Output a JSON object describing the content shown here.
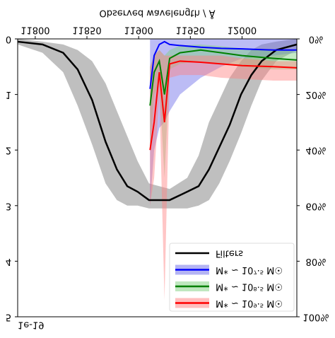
{
  "chart_data": {
    "type": "line",
    "xlabel": "Observed wavelength / Å",
    "y_offset_label": "1e-19",
    "xlim": [
      11783,
      12053
    ],
    "xticks": [
      11800,
      11850,
      11900,
      11950,
      12000
    ],
    "ylim": [
      0,
      5
    ],
    "yticks": [
      0,
      1,
      2,
      3,
      4,
      5
    ],
    "y2lim": [
      0,
      100
    ],
    "y2ticks": [
      {
        "value": 0,
        "label": "0%"
      },
      {
        "value": 20,
        "label": "20%"
      },
      {
        "value": 40,
        "label": "40%"
      },
      {
        "value": 60,
        "label": "60%"
      },
      {
        "value": 80,
        "label": "80%"
      },
      {
        "value": 100,
        "label": "100%"
      }
    ],
    "legend": "lower right",
    "series": [
      {
        "name": "Filters",
        "color": "#000000",
        "band_color": "#aaaaaa",
        "axis": "y2",
        "x": [
          11783,
          11807,
          11827,
          11841,
          11855,
          11868,
          11879,
          11889,
          11899,
          11910,
          11930,
          11947,
          11958,
          11968,
          11978,
          11988,
          11999,
          12009,
          12019,
          12033,
          12053
        ],
        "values": [
          1,
          2,
          5,
          11,
          22,
          37,
          47,
          53,
          55,
          58,
          58,
          55,
          53,
          47,
          39,
          31,
          20,
          13,
          8,
          4,
          2
        ],
        "lower": [
          0,
          1,
          2,
          4,
          8,
          16,
          26,
          35,
          44,
          52,
          54,
          50,
          42,
          30,
          22,
          14,
          8,
          4,
          2,
          1,
          0
        ],
        "upper": [
          2,
          5,
          12,
          24,
          38,
          52,
          58,
          60,
          60,
          61,
          61,
          61,
          60,
          58,
          52,
          44,
          34,
          24,
          15,
          8,
          4
        ]
      },
      {
        "name": "M* ~ 10⁷·⁵ M☉",
        "color": "#0000ff",
        "band_color": "#6a6ae8",
        "x": [
          11911,
          11915,
          11920,
          11925,
          11930,
          11940,
          11960,
          11980,
          12000,
          12030,
          12053
        ],
        "values": [
          0.9,
          0.3,
          0.1,
          0.05,
          0.1,
          0.12,
          0.15,
          0.17,
          0.18,
          0.2,
          0.2
        ],
        "lower": [
          0,
          0,
          0,
          0,
          0,
          0,
          0,
          0,
          0,
          0,
          0
        ],
        "upper": [
          3,
          2,
          1.6,
          1.5,
          1.3,
          1,
          0.7,
          0.5,
          0.35,
          0.3,
          0.25
        ]
      },
      {
        "name": "M* ~ 10⁸·⁵ M☉",
        "color": "#008000",
        "band_color": "#7fd07f",
        "x": [
          11911,
          11915,
          11920,
          11925,
          11930,
          11940,
          11960,
          11980,
          12000,
          12030,
          12053
        ],
        "values": [
          1.2,
          0.6,
          0.4,
          1,
          0.35,
          0.25,
          0.2,
          0.25,
          0.3,
          0.35,
          0.38
        ],
        "lower": [
          0.5,
          0.3,
          0.2,
          0.3,
          0.2,
          0.12,
          0.1,
          0.13,
          0.17,
          0.2,
          0.22
        ],
        "upper": [
          2,
          1,
          0.8,
          2.5,
          0.55,
          0.45,
          0.4,
          0.45,
          0.5,
          0.55,
          0.55
        ]
      },
      {
        "name": "M* ~ 10⁹·⁵ M☉",
        "color": "#ff0000",
        "band_color": "#ff8080",
        "x": [
          11911,
          11915,
          11920,
          11925,
          11930,
          11940,
          11960,
          11980,
          12000,
          12030,
          12053
        ],
        "values": [
          2,
          1.5,
          0.6,
          1.5,
          0.45,
          0.4,
          0.42,
          0.45,
          0.48,
          0.5,
          0.52
        ],
        "lower": [
          0.5,
          0.3,
          0.2,
          0.3,
          0.3,
          0.3,
          0.3,
          0.3,
          0.35,
          0.4,
          0.4
        ],
        "upper": [
          3,
          2.5,
          1,
          4.7,
          0.7,
          0.65,
          0.65,
          0.7,
          0.72,
          0.75,
          0.75
        ]
      }
    ]
  }
}
